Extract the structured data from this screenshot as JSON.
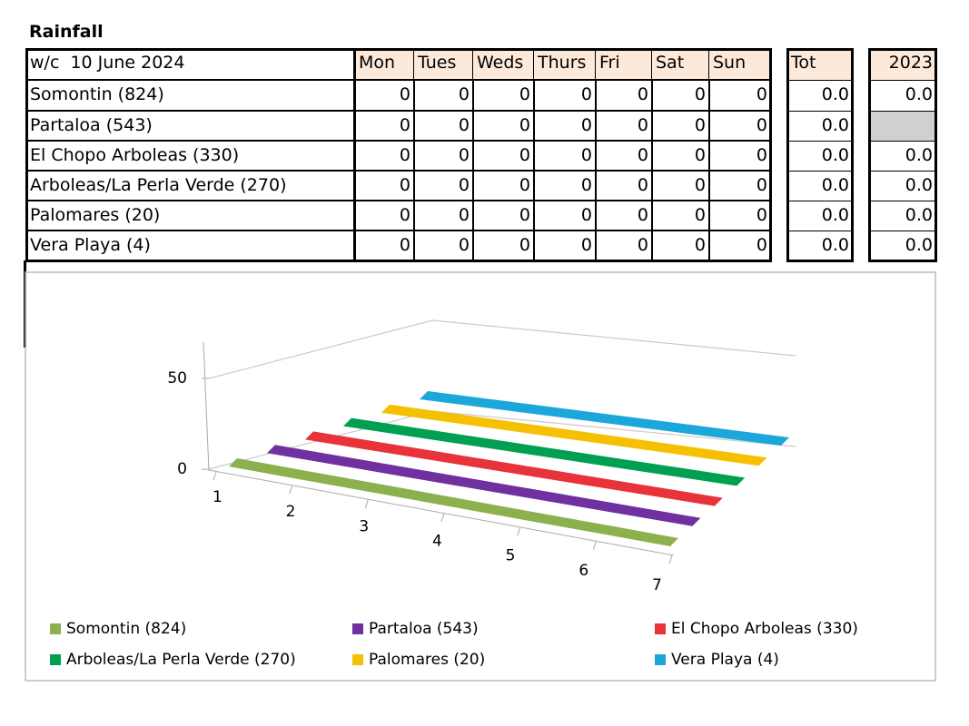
{
  "title": "Rainfall",
  "table": {
    "header": [
      "w/c  10 June 2024",
      "Mon",
      "Tues",
      "Weds",
      "Thurs",
      "Fri",
      "Sat",
      "Sun",
      "Tot",
      "2023"
    ],
    "rows": [
      [
        "Somontin (824)",
        "0",
        "0",
        "0",
        "0",
        "0",
        "0",
        "0",
        "0.0",
        "0.0"
      ],
      [
        "Partaloa (543)",
        "0",
        "0",
        "0",
        "0",
        "0",
        "0",
        "0",
        "0.0",
        null
      ],
      [
        "El Chopo Arboleas (330)",
        "0",
        "0",
        "0",
        "0",
        "0",
        "0",
        "0",
        "0.0",
        "0.0"
      ],
      [
        "Arboleas/La Perla Verde (270)",
        "0",
        "0",
        "0",
        "0",
        "0",
        "0",
        "0",
        "0.0",
        "0.0"
      ],
      [
        "Palomares (20)",
        "0",
        "0",
        "0",
        "0",
        "0",
        "0",
        "0",
        "0.0",
        "0.0"
      ],
      [
        "Vera Playa (4)",
        "0",
        "0",
        "0",
        "0",
        "0",
        "0",
        "0",
        "0.0",
        "0.0"
      ]
    ]
  },
  "chart_data": {
    "type": "ribbon3d",
    "categories": [
      "1",
      "2",
      "3",
      "4",
      "5",
      "6",
      "7"
    ],
    "ylim": [
      0,
      70
    ],
    "yticks": [
      0,
      50
    ],
    "grid": true,
    "series": [
      {
        "name": "Somontin (824)",
        "color": "#8db04e",
        "values": [
          0,
          0,
          0,
          0,
          0,
          0,
          0
        ]
      },
      {
        "name": "Partaloa (543)",
        "color": "#7030a0",
        "values": [
          0,
          0,
          0,
          0,
          0,
          0,
          0
        ]
      },
      {
        "name": "El Chopo Arboleas (330)",
        "color": "#e8333a",
        "values": [
          0,
          0,
          0,
          0,
          0,
          0,
          0
        ]
      },
      {
        "name": "Arboleas/La Perla Verde (270)",
        "color": "#00a050",
        "values": [
          0,
          0,
          0,
          0,
          0,
          0,
          0
        ]
      },
      {
        "name": "Palomares (20)",
        "color": "#f5c000",
        "values": [
          0,
          0,
          0,
          0,
          0,
          0,
          0
        ]
      },
      {
        "name": "Vera Playa (4)",
        "color": "#1ba7d9",
        "values": [
          0,
          0,
          0,
          0,
          0,
          0,
          0
        ]
      }
    ]
  }
}
